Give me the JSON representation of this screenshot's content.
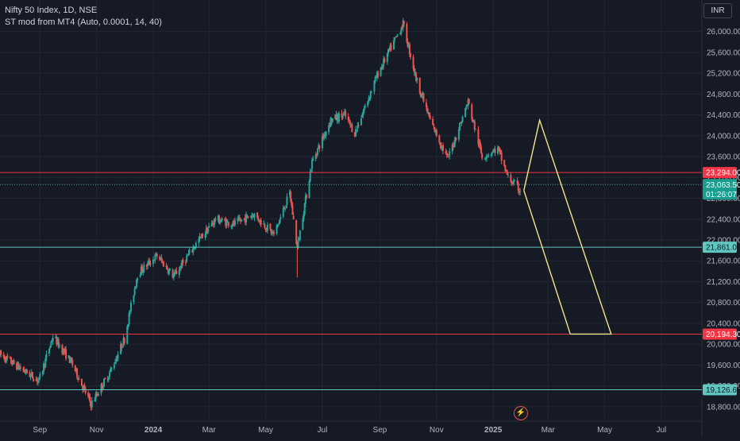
{
  "legend": {
    "title": "Nifty 50 Index, 1D, NSE",
    "indicator": "ST mod from MT4 (Auto, 0.0001, 14, 40)"
  },
  "currency_label": "INR",
  "icons": {
    "alert": "lightning-icon"
  },
  "colors": {
    "background": "#161a25",
    "grid": "#232733",
    "axis_text": "#b2b5be",
    "up_candle": "#26a69a",
    "down_candle": "#ef5350",
    "resistance_line": "#f23645",
    "support_line": "#5fc7c0",
    "projection": "#f5e48a"
  },
  "chart_data": {
    "type": "candlestick",
    "symbol": "Nifty 50 Index",
    "interval": "1D",
    "exchange": "NSE",
    "x_ticks": [
      "Sep",
      "Nov",
      "2024",
      "Mar",
      "May",
      "Jul",
      "Sep",
      "Nov",
      "2025",
      "Mar",
      "May",
      "Jul"
    ],
    "y_ticks": [
      26000,
      25600,
      25200,
      24800,
      24400,
      24000,
      23600,
      23200,
      22800,
      22400,
      22000,
      21600,
      21200,
      20800,
      20400,
      20000,
      19600,
      19200,
      18800
    ],
    "y_tick_labels": [
      "26,000.00",
      "25,600.00",
      "25,200.00",
      "24,800.00",
      "24,400.00",
      "24,000.00",
      "23,600.00",
      "23,200.00",
      "22,800.00",
      "22,400.00",
      "22,000.00",
      "21,600.00",
      "21,200.00",
      "20,800.00",
      "20,400.00",
      "20,000.00",
      "19,600.00",
      "19,200.00",
      "18,800.00"
    ],
    "ylim": [
      18600,
      26300
    ],
    "x_range": [
      "2023-07-20",
      "2025-07-31"
    ],
    "price_path": [
      [
        "2023-07-20",
        19800
      ],
      [
        "2023-08-10",
        19550
      ],
      [
        "2023-08-31",
        19300
      ],
      [
        "2023-09-15",
        20150
      ],
      [
        "2023-10-05",
        19650
      ],
      [
        "2023-10-26",
        18850
      ],
      [
        "2023-11-15",
        19450
      ],
      [
        "2023-12-01",
        20100
      ],
      [
        "2023-12-15",
        21350
      ],
      [
        "2024-01-05",
        21700
      ],
      [
        "2024-01-23",
        21300
      ],
      [
        "2024-02-15",
        21900
      ],
      [
        "2024-03-08",
        22400
      ],
      [
        "2024-03-28",
        22300
      ],
      [
        "2024-04-18",
        22500
      ],
      [
        "2024-05-10",
        22100
      ],
      [
        "2024-05-27",
        22900
      ],
      [
        "2024-06-04",
        21850
      ],
      [
        "2024-06-20",
        23500
      ],
      [
        "2024-07-10",
        24300
      ],
      [
        "2024-07-25",
        24400
      ],
      [
        "2024-08-05",
        24050
      ],
      [
        "2024-08-30",
        25200
      ],
      [
        "2024-09-26",
        26150
      ],
      [
        "2024-10-10",
        25100
      ],
      [
        "2024-10-25",
        24300
      ],
      [
        "2024-11-13",
        23550
      ],
      [
        "2024-12-05",
        24650
      ],
      [
        "2024-12-20",
        23600
      ],
      [
        "2025-01-06",
        23750
      ],
      [
        "2025-01-17",
        23200
      ],
      [
        "2025-01-30",
        22950
      ]
    ],
    "horizontal_levels": [
      {
        "value": 23294.0,
        "label": "23,294.00",
        "kind": "resistance"
      },
      {
        "value": 21861.0,
        "label": "21,861.00",
        "kind": "support"
      },
      {
        "value": 20194.3,
        "label": "20,194.30",
        "kind": "resistance"
      },
      {
        "value": 19126.6,
        "label": "19,126.60",
        "kind": "support"
      }
    ],
    "last_price": {
      "value": 23063.5,
      "label": "23,063.50",
      "countdown": "01:26:07"
    },
    "projection": [
      [
        "2025-02-03",
        22950
      ],
      [
        "2025-02-20",
        24300
      ],
      [
        "2025-05-08",
        20194.3
      ],
      [
        "2025-03-25",
        20194.3
      ],
      [
        "2025-02-03",
        22950
      ]
    ]
  }
}
